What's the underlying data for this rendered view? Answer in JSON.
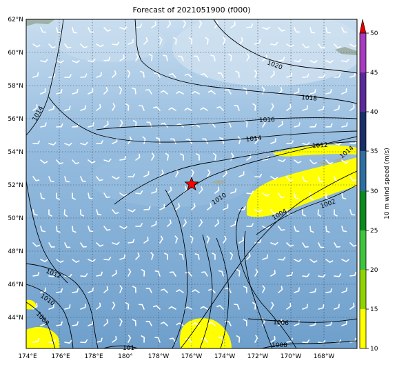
{
  "title": "Forecast of 2021051900 (f000)",
  "colors": {
    "ocean": "#7aaad4",
    "ocean_light": "#c3daee",
    "land": "#9fb0a8",
    "wind_10_15": "#ffff00",
    "wind_15_20": "#8fd400",
    "wind_20_25": "#3ec43e",
    "wind_25_30": "#0c8a1e",
    "wind_30_35": "#2e6fa0",
    "wind_35_40": "#1a2f6a",
    "wind_40_45": "#5a2a9a",
    "wind_45_50": "#a83cc0",
    "wind_over": "#e00000",
    "marker": "#ff0000"
  },
  "map": {
    "lat_labels": [
      "62°N",
      "60°N",
      "58°N",
      "56°N",
      "54°N",
      "52°N",
      "50°N",
      "48°N",
      "46°N",
      "44°N"
    ],
    "lon_labels": [
      "174°E",
      "176°E",
      "178°E",
      "180°",
      "178°W",
      "176°W",
      "174°W",
      "172°W",
      "170°W",
      "168°W"
    ],
    "marker_icon": "star-marker",
    "marker_location": {
      "lon": "176°W",
      "lat": "52°N"
    }
  },
  "contour_labels": [
    "1020",
    "1018",
    "1016",
    "1014",
    "1014",
    "1012",
    "1010",
    "1004",
    "1002",
    "1012",
    "1010",
    "1008",
    "1006",
    "1008",
    "1014",
    "101"
  ],
  "colorbar": {
    "label": "10 m wind speed (m/s)",
    "ticks": [
      "50",
      "45",
      "40",
      "35",
      "30",
      "25",
      "20",
      "15",
      "10"
    ]
  }
}
